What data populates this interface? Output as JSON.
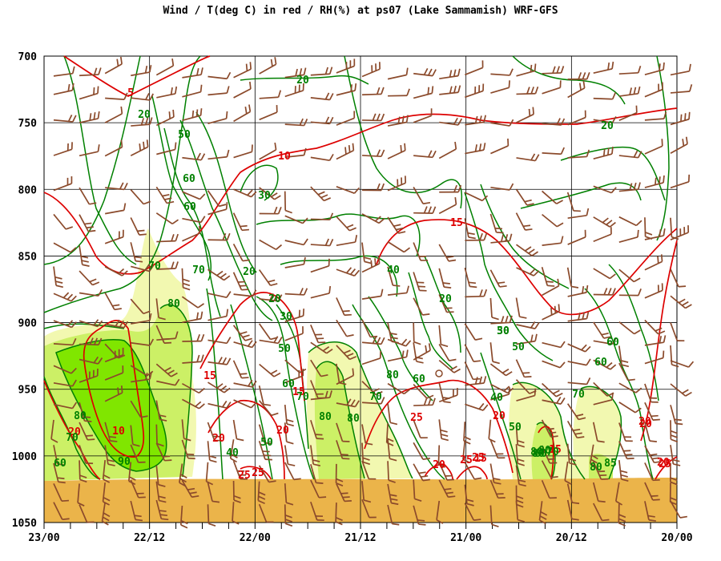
{
  "chart_data": {
    "type": "line",
    "title": "Wind / T(deg C) in red / RH(%) at ps07 (Lake Sammamish)  WRF-GFS",
    "y_axis": {
      "quantity": "pressure (hPa)",
      "range": [
        700,
        1050
      ],
      "inverted": true,
      "ticks": [
        "700",
        "750",
        "800",
        "850",
        "900",
        "950",
        "1000",
        "1050"
      ]
    },
    "x_axis": {
      "quantity": "time (day/hour)",
      "order": "reversed",
      "ticks": [
        "23/00",
        "22/12",
        "22/00",
        "21/12",
        "21/00",
        "20/12",
        "20/00"
      ]
    },
    "grid": true,
    "colors": {
      "temperature": "#dd0000",
      "rh": "#008000",
      "wind": "#8b4a2b",
      "ground": "#ebb44a",
      "rh_fill_70": "#f2f8b0",
      "rh_fill_80": "#ccf066",
      "rh_fill_90": "#80e600"
    },
    "temperature_labels": [
      "5",
      "10",
      "15",
      "15",
      "10",
      "15",
      "20",
      "20",
      "25",
      "25",
      "20",
      "25",
      "15",
      "20",
      "25",
      "20",
      "25",
      "20",
      "25",
      "15",
      "20",
      "20"
    ],
    "rh_labels": [
      "20",
      "20",
      "50",
      "60",
      "60",
      "70",
      "70",
      "80",
      "20",
      "30",
      "20",
      "20",
      "30",
      "40",
      "50",
      "60",
      "70",
      "80",
      "90",
      "80",
      "70",
      "60",
      "40",
      "50",
      "60",
      "80",
      "80",
      "70",
      "60",
      "50",
      "40",
      "20",
      "30",
      "50",
      "60",
      "70",
      "50",
      "60",
      "70",
      "80",
      "80",
      "85",
      "80",
      "80"
    ]
  }
}
